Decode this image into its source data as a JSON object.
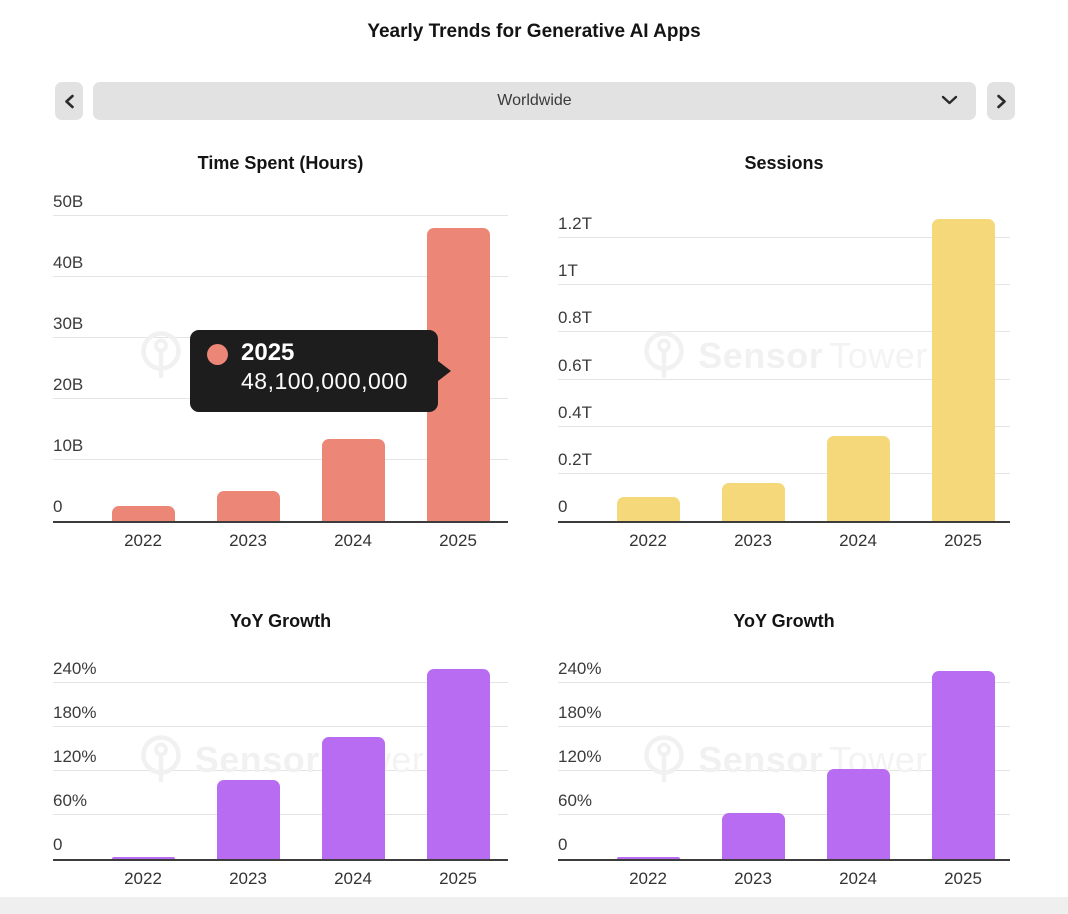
{
  "page": {
    "title": "Yearly Trends for Generative AI Apps"
  },
  "controls": {
    "region": "Worldwide"
  },
  "watermark": {
    "brand_bold": "Sensor",
    "brand_light": "Tower"
  },
  "tooltip": {
    "year": "2025",
    "value": "48,100,000,000",
    "dot_color": "#EC8676"
  },
  "chart_data": [
    {
      "id": "time-spent",
      "type": "bar",
      "title": "Time Spent (Hours)",
      "categories": [
        "2022",
        "2023",
        "2024",
        "2025"
      ],
      "values": [
        2400000000,
        5000000000,
        13400000000,
        48100000000
      ],
      "bar_color": "#EC8676",
      "ylim": [
        0,
        50000000000
      ],
      "grid": true,
      "legend": "none",
      "yticks": [
        {
          "value": 0,
          "label": "0"
        },
        {
          "value": 10000000000,
          "label": "10B"
        },
        {
          "value": 20000000000,
          "label": "20B"
        },
        {
          "value": 30000000000,
          "label": "30B"
        },
        {
          "value": 40000000000,
          "label": "40B"
        },
        {
          "value": 50000000000,
          "label": "50B"
        }
      ]
    },
    {
      "id": "sessions",
      "type": "bar",
      "title": "Sessions",
      "categories": [
        "2022",
        "2023",
        "2024",
        "2025"
      ],
      "values": [
        100000000000,
        160000000000,
        360000000000,
        1280000000000
      ],
      "bar_color": "#F5D87A",
      "ylim": [
        0,
        1200000000000
      ],
      "grid": true,
      "legend": "none",
      "yticks": [
        {
          "value": 0,
          "label": "0"
        },
        {
          "value": 200000000000,
          "label": "0.2T"
        },
        {
          "value": 400000000000,
          "label": "0.4T"
        },
        {
          "value": 600000000000,
          "label": "0.6T"
        },
        {
          "value": 800000000000,
          "label": "0.8T"
        },
        {
          "value": 1000000000000,
          "label": "1T"
        },
        {
          "value": 1200000000000,
          "label": "1.2T"
        }
      ]
    },
    {
      "id": "yoy-growth-time-spent",
      "type": "bar",
      "title": "YoY Growth",
      "categories": [
        "2022",
        "2023",
        "2024",
        "2025"
      ],
      "values": [
        2,
        108,
        166,
        259
      ],
      "value_unit": "%",
      "bar_color": "#B76CF1",
      "ylim": [
        0,
        240
      ],
      "grid": true,
      "legend": "none",
      "yticks": [
        {
          "value": 0,
          "label": "0"
        },
        {
          "value": 60,
          "label": "60%"
        },
        {
          "value": 120,
          "label": "120%"
        },
        {
          "value": 180,
          "label": "180%"
        },
        {
          "value": 240,
          "label": "240%"
        }
      ]
    },
    {
      "id": "yoy-growth-sessions",
      "type": "bar",
      "title": "YoY Growth",
      "categories": [
        "2022",
        "2023",
        "2024",
        "2025"
      ],
      "values": [
        2,
        63,
        123,
        256
      ],
      "value_unit": "%",
      "bar_color": "#B76CF1",
      "ylim": [
        0,
        240
      ],
      "grid": true,
      "legend": "none",
      "yticks": [
        {
          "value": 0,
          "label": "0"
        },
        {
          "value": 60,
          "label": "60%"
        },
        {
          "value": 120,
          "label": "120%"
        },
        {
          "value": 180,
          "label": "180%"
        },
        {
          "value": 240,
          "label": "240%"
        }
      ]
    }
  ]
}
